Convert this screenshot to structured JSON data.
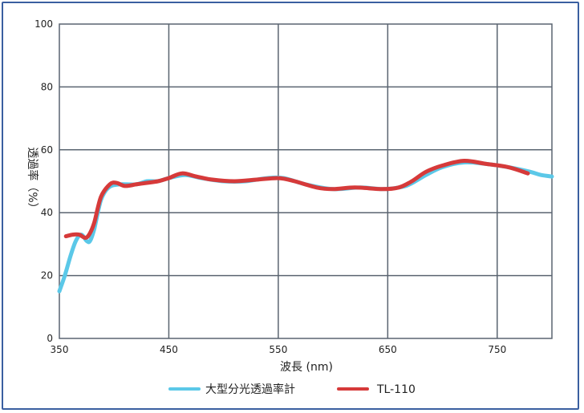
{
  "chart_data": {
    "type": "line",
    "xlabel": "波長 (nm)",
    "ylabel": "透過率（%）",
    "xlim": [
      350,
      800
    ],
    "ylim": [
      0,
      100
    ],
    "x_ticks": [
      "350",
      "450",
      "550",
      "650",
      "750"
    ],
    "y_ticks": [
      "0",
      "20",
      "40",
      "60",
      "80",
      "100"
    ],
    "grid": true,
    "legend_position": "bottom",
    "series": [
      {
        "name": "大型分光透過率計",
        "color": "#5bc8e8",
        "points": [
          [
            350,
            15
          ],
          [
            355,
            20
          ],
          [
            360,
            26
          ],
          [
            365,
            31
          ],
          [
            370,
            33
          ],
          [
            375,
            31
          ],
          [
            378,
            31
          ],
          [
            382,
            35
          ],
          [
            388,
            44
          ],
          [
            395,
            48
          ],
          [
            405,
            49
          ],
          [
            420,
            49
          ],
          [
            430,
            50
          ],
          [
            440,
            50
          ],
          [
            450,
            51
          ],
          [
            465,
            52
          ],
          [
            480,
            51
          ],
          [
            500,
            50
          ],
          [
            520,
            50
          ],
          [
            540,
            51
          ],
          [
            555,
            51
          ],
          [
            575,
            49
          ],
          [
            600,
            47.5
          ],
          [
            625,
            48
          ],
          [
            645,
            47.5
          ],
          [
            660,
            48
          ],
          [
            670,
            49
          ],
          [
            685,
            52
          ],
          [
            700,
            54.5
          ],
          [
            720,
            56
          ],
          [
            740,
            55.5
          ],
          [
            760,
            54.5
          ],
          [
            780,
            53
          ],
          [
            790,
            52
          ],
          [
            800,
            51.5
          ]
        ]
      },
      {
        "name": "TL-110",
        "color": "#d63a3a",
        "points": [
          [
            356,
            32.5
          ],
          [
            362,
            33
          ],
          [
            368,
            33
          ],
          [
            374,
            32
          ],
          [
            378,
            33.5
          ],
          [
            382,
            37
          ],
          [
            388,
            45
          ],
          [
            396,
            49
          ],
          [
            402,
            49.5
          ],
          [
            410,
            48.5
          ],
          [
            420,
            49
          ],
          [
            430,
            49.5
          ],
          [
            440,
            50
          ],
          [
            450,
            51
          ],
          [
            462,
            52.5
          ],
          [
            475,
            51.5
          ],
          [
            490,
            50.5
          ],
          [
            510,
            50
          ],
          [
            530,
            50.5
          ],
          [
            550,
            51
          ],
          [
            565,
            50
          ],
          [
            585,
            48
          ],
          [
            600,
            47.5
          ],
          [
            620,
            48
          ],
          [
            645,
            47.5
          ],
          [
            660,
            48
          ],
          [
            672,
            50
          ],
          [
            685,
            53
          ],
          [
            700,
            55
          ],
          [
            720,
            56.5
          ],
          [
            740,
            55.5
          ],
          [
            760,
            54.5
          ],
          [
            778,
            52.5
          ]
        ]
      }
    ]
  }
}
